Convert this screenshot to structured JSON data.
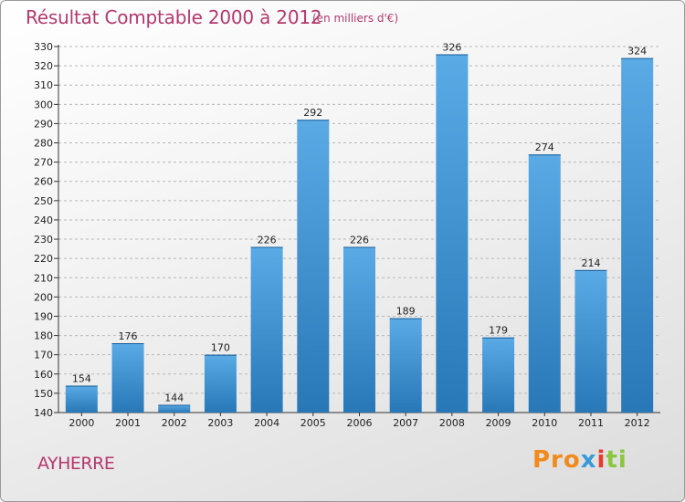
{
  "header": {
    "title": "Résultat Comptable 2000 à 2012",
    "subtitle": "(en milliers d'€)"
  },
  "footer": {
    "commune": "AYHERRE",
    "logo": [
      "Pro",
      "x",
      "i",
      "ti"
    ]
  },
  "colors": {
    "bar_light": "#5aaae6",
    "bar_dark": "#2878b8",
    "title": "#b5386e"
  },
  "chart_data": {
    "type": "bar",
    "categories": [
      "2000",
      "2001",
      "2002",
      "2003",
      "2004",
      "2005",
      "2006",
      "2007",
      "2008",
      "2009",
      "2010",
      "2011",
      "2012"
    ],
    "values": [
      154,
      176,
      144,
      170,
      226,
      292,
      226,
      189,
      326,
      179,
      274,
      214,
      324
    ],
    "title": "Résultat Comptable 2000 à 2012",
    "subtitle": "(en milliers d'€)",
    "xlabel": "",
    "ylabel": "",
    "ylim": [
      140,
      330
    ],
    "yticks": [
      140,
      150,
      160,
      170,
      180,
      190,
      200,
      210,
      220,
      230,
      240,
      250,
      260,
      270,
      280,
      290,
      300,
      310,
      320,
      330
    ],
    "grid": "horizontal dashed",
    "legend": "none"
  }
}
